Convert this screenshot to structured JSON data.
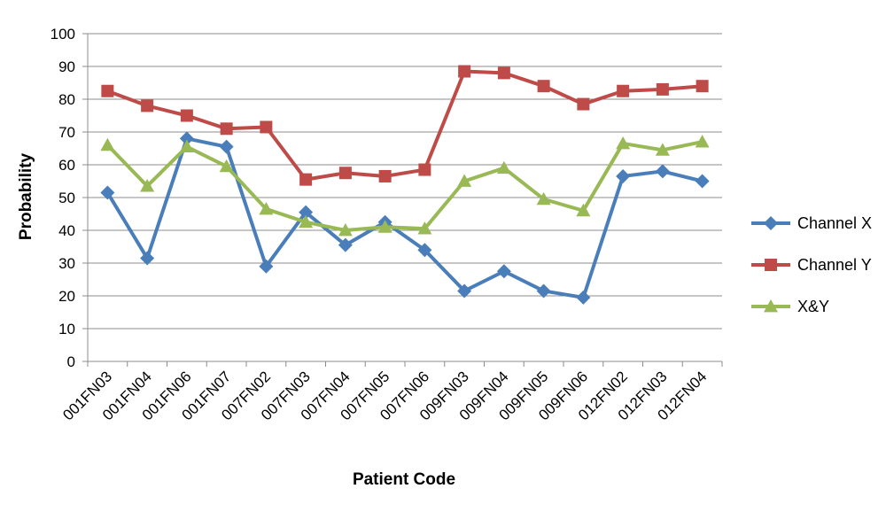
{
  "chart_data": {
    "type": "line",
    "title": "",
    "xlabel": "Patient Code",
    "ylabel": "Probability",
    "ylim": [
      0,
      100
    ],
    "yticks": [
      0,
      10,
      20,
      30,
      40,
      50,
      60,
      70,
      80,
      90,
      100
    ],
    "grid": true,
    "legend_position": "right",
    "categories": [
      "001FN03",
      "001FN04",
      "001FN06",
      "001FN07",
      "007FN02",
      "007FN03",
      "007FN04",
      "007FN05",
      "007FN06",
      "009FN03",
      "009FN04",
      "009FN05",
      "009FN06",
      "012FN02",
      "012FN03",
      "012FN04"
    ],
    "series": [
      {
        "name": "Channel X",
        "color": "#4a7ebb",
        "marker": "diamond",
        "values": [
          51.5,
          31.5,
          68,
          65.5,
          29,
          45.5,
          35.5,
          42.5,
          34,
          21.5,
          27.5,
          21.5,
          19.5,
          56.5,
          58,
          55
        ]
      },
      {
        "name": "Channel Y",
        "color": "#be4b48",
        "marker": "square",
        "values": [
          82.5,
          78,
          75,
          71,
          71.5,
          55.5,
          57.5,
          56.5,
          58.5,
          88.5,
          88,
          84,
          78.5,
          82.5,
          83,
          84
        ]
      },
      {
        "name": "X&Y",
        "color": "#98b954",
        "marker": "triangle",
        "values": [
          66,
          53.5,
          65.5,
          59.5,
          46.5,
          42.5,
          40,
          41,
          40.5,
          55,
          59,
          49.5,
          46,
          66.5,
          64.5,
          67
        ]
      }
    ]
  }
}
